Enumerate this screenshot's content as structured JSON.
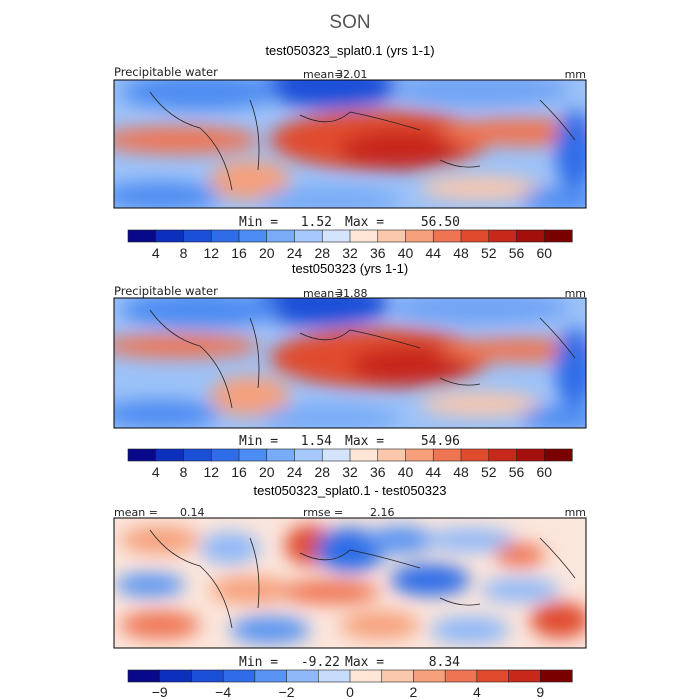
{
  "figure": {
    "season": "SON"
  },
  "chart_data": [
    {
      "type": "heatmap",
      "title": "test050323_splat0.1 (yrs 1-1)",
      "variable": "Precipitable water",
      "units": "mm",
      "mean_label": "mean=",
      "mean": "32.01",
      "min_label": "Min =",
      "min": "1.52",
      "max_label": "Max =",
      "max": "56.50",
      "colorbar_levels": [
        "4",
        "8",
        "12",
        "16",
        "20",
        "24",
        "28",
        "32",
        "36",
        "40",
        "44",
        "48",
        "52",
        "56",
        "60"
      ],
      "colorbar_colors": [
        "#08088a",
        "#0c2fbd",
        "#1a4fd8",
        "#2f6de8",
        "#4d8cf2",
        "#78acf7",
        "#a6c8fa",
        "#d4e4fc",
        "#fde6d6",
        "#fbc8ab",
        "#f6a07c",
        "#ef7552",
        "#e04b2e",
        "#c8281a",
        "#a3100c",
        "#7a0000"
      ]
    },
    {
      "type": "heatmap",
      "title": "test050323 (yrs 1-1)",
      "variable": "Precipitable water",
      "units": "mm",
      "mean_label": "mean=",
      "mean": "31.88",
      "min_label": "Min =",
      "min": "1.54",
      "max_label": "Max =",
      "max": "54.96",
      "colorbar_levels": [
        "4",
        "8",
        "12",
        "16",
        "20",
        "24",
        "28",
        "32",
        "36",
        "40",
        "44",
        "48",
        "52",
        "56",
        "60"
      ],
      "colorbar_colors": [
        "#08088a",
        "#0c2fbd",
        "#1a4fd8",
        "#2f6de8",
        "#4d8cf2",
        "#78acf7",
        "#a6c8fa",
        "#d4e4fc",
        "#fde6d6",
        "#fbc8ab",
        "#f6a07c",
        "#ef7552",
        "#e04b2e",
        "#c8281a",
        "#a3100c",
        "#7a0000"
      ]
    },
    {
      "type": "heatmap",
      "title": "test050323_splat0.1 - test050323",
      "units": "mm",
      "mean_label": "mean =",
      "mean": "0.14",
      "rmse_label": "rmse =",
      "rmse": "2.16",
      "min_label": "Min =",
      "min": "-9.22",
      "max_label": "Max =",
      "max": "8.34",
      "colorbar_levels": [
        "−9",
        "",
        "−4",
        "",
        "−2",
        "",
        "0",
        "",
        "2",
        "",
        "4",
        "",
        "9"
      ],
      "colorbar_colors": [
        "#08088a",
        "#0c2fbd",
        "#1a4fd8",
        "#2f6de8",
        "#5a94f2",
        "#8fb8f8",
        "#c6dcfb",
        "#fde6d6",
        "#fbc8ab",
        "#f6a07c",
        "#ef7552",
        "#e04b2e",
        "#c8281a",
        "#7a0000"
      ]
    }
  ]
}
